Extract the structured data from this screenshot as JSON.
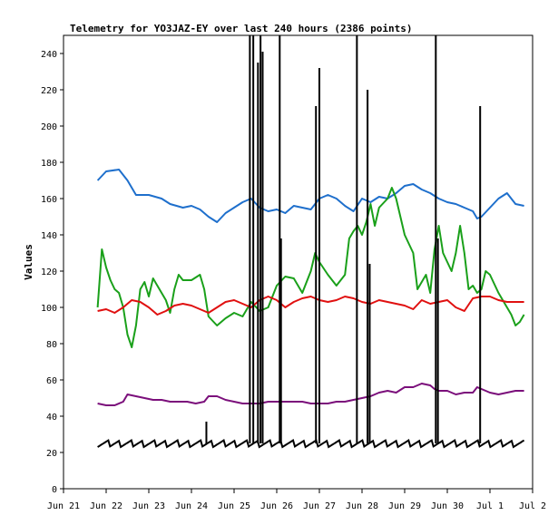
{
  "chart_data": {
    "type": "line",
    "title": "Telemetry for YO3JAZ-EY over last 240 hours (2386 points)",
    "ylabel": "Values",
    "xlabel": "",
    "ylim": [
      0,
      250
    ],
    "yticks": [
      0,
      20,
      40,
      60,
      80,
      100,
      120,
      140,
      160,
      180,
      200,
      220,
      240
    ],
    "xlim": [
      21,
      32
    ],
    "xticks": [
      {
        "label": "Jun 21",
        "x": 21
      },
      {
        "label": "Jun 22",
        "x": 22
      },
      {
        "label": "Jun 23",
        "x": 23
      },
      {
        "label": "Jun 24",
        "x": 24
      },
      {
        "label": "Jun 25",
        "x": 25
      },
      {
        "label": "Jun 26",
        "x": 26
      },
      {
        "label": "Jun 27",
        "x": 27
      },
      {
        "label": "Jun 28",
        "x": 28
      },
      {
        "label": "Jun 29",
        "x": 29
      },
      {
        "label": "Jun 30",
        "x": 30
      },
      {
        "label": "Jul 1",
        "x": 31
      },
      {
        "label": "Jul 2",
        "x": 32
      }
    ],
    "grid": false,
    "legend": "none",
    "series": [
      {
        "color": "#1e6fcc",
        "points": [
          [
            21.8,
            170
          ],
          [
            22.0,
            175
          ],
          [
            22.3,
            176
          ],
          [
            22.5,
            170
          ],
          [
            22.7,
            162
          ],
          [
            23.0,
            162
          ],
          [
            23.3,
            160
          ],
          [
            23.5,
            157
          ],
          [
            23.8,
            155
          ],
          [
            24.0,
            156
          ],
          [
            24.2,
            154
          ],
          [
            24.4,
            150
          ],
          [
            24.6,
            147
          ],
          [
            24.8,
            152
          ],
          [
            25.0,
            155
          ],
          [
            25.2,
            158
          ],
          [
            25.4,
            160
          ],
          [
            25.6,
            155
          ],
          [
            25.8,
            153
          ],
          [
            26.0,
            154
          ],
          [
            26.2,
            152
          ],
          [
            26.4,
            156
          ],
          [
            26.6,
            155
          ],
          [
            26.8,
            154
          ],
          [
            27.0,
            160
          ],
          [
            27.2,
            162
          ],
          [
            27.4,
            160
          ],
          [
            27.6,
            156
          ],
          [
            27.8,
            153
          ],
          [
            28.0,
            160
          ],
          [
            28.2,
            158
          ],
          [
            28.4,
            161
          ],
          [
            28.6,
            160
          ],
          [
            28.8,
            163
          ],
          [
            29.0,
            167
          ],
          [
            29.2,
            168
          ],
          [
            29.4,
            165
          ],
          [
            29.6,
            163
          ],
          [
            29.8,
            160
          ],
          [
            30.0,
            158
          ],
          [
            30.2,
            157
          ],
          [
            30.4,
            155
          ],
          [
            30.6,
            153
          ],
          [
            30.7,
            149
          ],
          [
            30.8,
            150
          ],
          [
            31.0,
            155
          ],
          [
            31.2,
            160
          ],
          [
            31.4,
            163
          ],
          [
            31.6,
            157
          ],
          [
            31.8,
            156
          ]
        ]
      },
      {
        "color": "#1aa01a",
        "points": [
          [
            21.8,
            100
          ],
          [
            21.9,
            132
          ],
          [
            22.0,
            122
          ],
          [
            22.1,
            115
          ],
          [
            22.2,
            110
          ],
          [
            22.3,
            108
          ],
          [
            22.4,
            100
          ],
          [
            22.5,
            85
          ],
          [
            22.6,
            78
          ],
          [
            22.7,
            90
          ],
          [
            22.8,
            110
          ],
          [
            22.9,
            114
          ],
          [
            23.0,
            106
          ],
          [
            23.1,
            116
          ],
          [
            23.2,
            112
          ],
          [
            23.3,
            108
          ],
          [
            23.4,
            104
          ],
          [
            23.5,
            97
          ],
          [
            23.6,
            110
          ],
          [
            23.7,
            118
          ],
          [
            23.8,
            115
          ],
          [
            24.0,
            115
          ],
          [
            24.2,
            118
          ],
          [
            24.3,
            110
          ],
          [
            24.4,
            95
          ],
          [
            24.6,
            90
          ],
          [
            24.8,
            94
          ],
          [
            25.0,
            97
          ],
          [
            25.2,
            95
          ],
          [
            25.4,
            103
          ],
          [
            25.6,
            98
          ],
          [
            25.8,
            100
          ],
          [
            26.0,
            112
          ],
          [
            26.2,
            117
          ],
          [
            26.4,
            116
          ],
          [
            26.6,
            108
          ],
          [
            26.8,
            120
          ],
          [
            26.9,
            130
          ],
          [
            27.0,
            125
          ],
          [
            27.2,
            118
          ],
          [
            27.4,
            112
          ],
          [
            27.6,
            118
          ],
          [
            27.7,
            138
          ],
          [
            27.8,
            142
          ],
          [
            27.9,
            145
          ],
          [
            28.0,
            140
          ],
          [
            28.1,
            147
          ],
          [
            28.2,
            157
          ],
          [
            28.3,
            145
          ],
          [
            28.4,
            155
          ],
          [
            28.6,
            160
          ],
          [
            28.7,
            166
          ],
          [
            28.8,
            160
          ],
          [
            28.9,
            150
          ],
          [
            29.0,
            140
          ],
          [
            29.2,
            130
          ],
          [
            29.3,
            110
          ],
          [
            29.5,
            118
          ],
          [
            29.6,
            108
          ],
          [
            29.7,
            132
          ],
          [
            29.8,
            145
          ],
          [
            29.9,
            130
          ],
          [
            30.0,
            125
          ],
          [
            30.1,
            120
          ],
          [
            30.2,
            130
          ],
          [
            30.3,
            145
          ],
          [
            30.4,
            130
          ],
          [
            30.5,
            110
          ],
          [
            30.6,
            112
          ],
          [
            30.7,
            108
          ],
          [
            30.8,
            110
          ],
          [
            30.9,
            120
          ],
          [
            31.0,
            118
          ],
          [
            31.2,
            108
          ],
          [
            31.4,
            100
          ],
          [
            31.5,
            96
          ],
          [
            31.6,
            90
          ],
          [
            31.7,
            92
          ],
          [
            31.8,
            96
          ]
        ]
      },
      {
        "color": "#e01010",
        "points": [
          [
            21.8,
            98
          ],
          [
            22.0,
            99
          ],
          [
            22.2,
            97
          ],
          [
            22.4,
            100
          ],
          [
            22.6,
            104
          ],
          [
            22.8,
            103
          ],
          [
            23.0,
            100
          ],
          [
            23.2,
            96
          ],
          [
            23.4,
            98
          ],
          [
            23.6,
            101
          ],
          [
            23.8,
            102
          ],
          [
            24.0,
            101
          ],
          [
            24.2,
            99
          ],
          [
            24.4,
            97
          ],
          [
            24.6,
            100
          ],
          [
            24.8,
            103
          ],
          [
            25.0,
            104
          ],
          [
            25.2,
            102
          ],
          [
            25.4,
            100
          ],
          [
            25.6,
            104
          ],
          [
            25.8,
            106
          ],
          [
            26.0,
            104
          ],
          [
            26.2,
            100
          ],
          [
            26.4,
            103
          ],
          [
            26.6,
            105
          ],
          [
            26.8,
            106
          ],
          [
            27.0,
            104
          ],
          [
            27.2,
            103
          ],
          [
            27.4,
            104
          ],
          [
            27.6,
            106
          ],
          [
            27.8,
            105
          ],
          [
            28.0,
            103
          ],
          [
            28.2,
            102
          ],
          [
            28.4,
            104
          ],
          [
            28.6,
            103
          ],
          [
            28.8,
            102
          ],
          [
            29.0,
            101
          ],
          [
            29.2,
            99
          ],
          [
            29.4,
            104
          ],
          [
            29.6,
            102
          ],
          [
            29.8,
            103
          ],
          [
            30.0,
            104
          ],
          [
            30.2,
            100
          ],
          [
            30.4,
            98
          ],
          [
            30.6,
            105
          ],
          [
            30.8,
            106
          ],
          [
            31.0,
            106
          ],
          [
            31.2,
            104
          ],
          [
            31.4,
            103
          ],
          [
            31.6,
            103
          ],
          [
            31.8,
            103
          ]
        ]
      },
      {
        "color": "#7b0f7b",
        "points": [
          [
            21.8,
            47
          ],
          [
            22.0,
            46
          ],
          [
            22.2,
            46
          ],
          [
            22.4,
            48
          ],
          [
            22.5,
            52
          ],
          [
            22.7,
            51
          ],
          [
            22.9,
            50
          ],
          [
            23.1,
            49
          ],
          [
            23.3,
            49
          ],
          [
            23.5,
            48
          ],
          [
            23.7,
            48
          ],
          [
            23.9,
            48
          ],
          [
            24.1,
            47
          ],
          [
            24.3,
            48
          ],
          [
            24.4,
            51
          ],
          [
            24.6,
            51
          ],
          [
            24.8,
            49
          ],
          [
            25.0,
            48
          ],
          [
            25.2,
            47
          ],
          [
            25.4,
            47
          ],
          [
            25.6,
            47
          ],
          [
            25.8,
            48
          ],
          [
            26.0,
            48
          ],
          [
            26.2,
            48
          ],
          [
            26.4,
            48
          ],
          [
            26.6,
            48
          ],
          [
            26.8,
            47
          ],
          [
            27.0,
            47
          ],
          [
            27.2,
            47
          ],
          [
            27.4,
            48
          ],
          [
            27.6,
            48
          ],
          [
            27.8,
            49
          ],
          [
            28.0,
            50
          ],
          [
            28.2,
            51
          ],
          [
            28.4,
            53
          ],
          [
            28.6,
            54
          ],
          [
            28.8,
            53
          ],
          [
            29.0,
            56
          ],
          [
            29.2,
            56
          ],
          [
            29.4,
            58
          ],
          [
            29.6,
            57
          ],
          [
            29.7,
            55
          ],
          [
            29.8,
            54
          ],
          [
            30.0,
            54
          ],
          [
            30.2,
            52
          ],
          [
            30.4,
            53
          ],
          [
            30.6,
            53
          ],
          [
            30.7,
            56
          ],
          [
            30.8,
            55
          ],
          [
            31.0,
            53
          ],
          [
            31.2,
            52
          ],
          [
            31.4,
            53
          ],
          [
            31.6,
            54
          ],
          [
            31.8,
            54
          ]
        ]
      },
      {
        "color": "#000000",
        "baseline": 25,
        "x_start": 21.8,
        "x_end": 31.8,
        "spikes": [
          [
            24.35,
            37
          ],
          [
            25.37,
            250
          ],
          [
            25.45,
            250
          ],
          [
            25.56,
            235
          ],
          [
            25.62,
            250
          ],
          [
            25.67,
            241
          ],
          [
            26.07,
            250
          ],
          [
            26.1,
            138
          ],
          [
            26.92,
            211
          ],
          [
            27.0,
            232
          ],
          [
            27.88,
            250
          ],
          [
            28.13,
            220
          ],
          [
            28.18,
            124
          ],
          [
            29.73,
            250
          ],
          [
            29.78,
            138
          ],
          [
            30.77,
            211
          ]
        ]
      }
    ]
  }
}
